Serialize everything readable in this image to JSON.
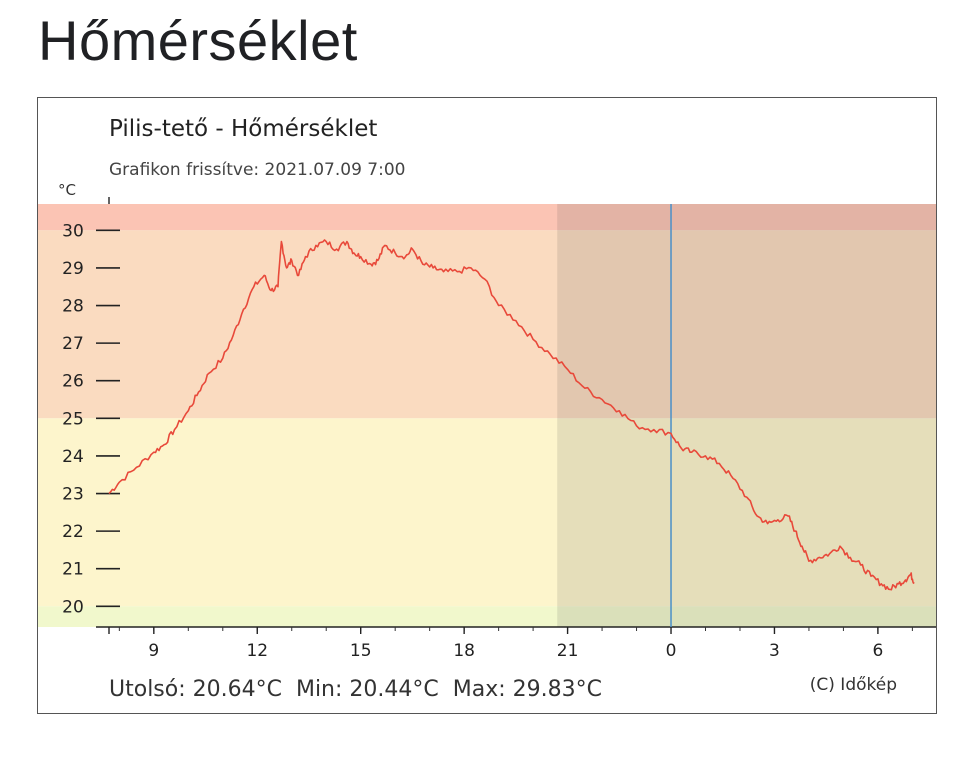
{
  "page": {
    "title": "Hőmérséklet"
  },
  "chart_data": {
    "type": "line",
    "title": "Pilis-tető - Hőmérséklet",
    "subtitle": "Grafikon frissítve: 2021.07.09 7:00",
    "y_unit": "°C",
    "ylim": [
      19.45,
      30.7
    ],
    "y_ticks": [
      20,
      21,
      22,
      23,
      24,
      25,
      26,
      27,
      28,
      29,
      30
    ],
    "x_range_hours": [
      7.7,
      31.25
    ],
    "x_ticks": [
      {
        "hour": 9,
        "label": "9"
      },
      {
        "hour": 12,
        "label": "12"
      },
      {
        "hour": 15,
        "label": "15"
      },
      {
        "hour": 18,
        "label": "18"
      },
      {
        "hour": 21,
        "label": "21"
      },
      {
        "hour": 24,
        "label": "0"
      },
      {
        "hour": 27,
        "label": "3"
      },
      {
        "hour": 30,
        "label": "6"
      }
    ],
    "bands": [
      {
        "from": 30,
        "to": 30.7,
        "color": "#fbc4b4"
      },
      {
        "from": 25,
        "to": 30,
        "color": "#fadbc0"
      },
      {
        "from": 20,
        "to": 25,
        "color": "#fdf5cc"
      },
      {
        "from": 19.45,
        "to": 20,
        "color": "#f1f8cc"
      }
    ],
    "night_shade": {
      "from_hour": 20.7,
      "to_hour": 31.25,
      "color": "rgba(60,60,60,0.12)"
    },
    "now_marker_hour": 24,
    "series": [
      {
        "color": "#e8493a",
        "points": [
          [
            7.7,
            23.0
          ],
          [
            8.0,
            23.3
          ],
          [
            8.5,
            23.7
          ],
          [
            9.0,
            24.1
          ],
          [
            9.3,
            24.3
          ],
          [
            9.6,
            24.7
          ],
          [
            10.0,
            25.2
          ],
          [
            10.3,
            25.7
          ],
          [
            10.6,
            26.2
          ],
          [
            11.0,
            26.6
          ],
          [
            11.3,
            27.2
          ],
          [
            11.6,
            27.9
          ],
          [
            11.9,
            28.5
          ],
          [
            12.2,
            28.8
          ],
          [
            12.4,
            28.4
          ],
          [
            12.6,
            28.5
          ],
          [
            12.7,
            29.7
          ],
          [
            12.85,
            29.0
          ],
          [
            13.0,
            29.2
          ],
          [
            13.2,
            28.8
          ],
          [
            13.4,
            29.3
          ],
          [
            13.7,
            29.6
          ],
          [
            14.0,
            29.7
          ],
          [
            14.3,
            29.5
          ],
          [
            14.6,
            29.7
          ],
          [
            14.8,
            29.4
          ],
          [
            15.0,
            29.3
          ],
          [
            15.3,
            29.1
          ],
          [
            15.5,
            29.2
          ],
          [
            15.7,
            29.6
          ],
          [
            16.0,
            29.4
          ],
          [
            16.3,
            29.3
          ],
          [
            16.5,
            29.5
          ],
          [
            16.8,
            29.1
          ],
          [
            17.1,
            29.0
          ],
          [
            17.4,
            28.9
          ],
          [
            17.8,
            28.9
          ],
          [
            18.2,
            29.0
          ],
          [
            18.6,
            28.7
          ],
          [
            19.0,
            28.0
          ],
          [
            19.5,
            27.6
          ],
          [
            20.0,
            27.1
          ],
          [
            20.5,
            26.7
          ],
          [
            21.0,
            26.3
          ],
          [
            21.5,
            25.8
          ],
          [
            22.0,
            25.5
          ],
          [
            22.5,
            25.2
          ],
          [
            23.0,
            24.8
          ],
          [
            23.5,
            24.7
          ],
          [
            24.0,
            24.6
          ],
          [
            24.3,
            24.2
          ],
          [
            24.6,
            24.1
          ],
          [
            25.0,
            24.0
          ],
          [
            25.4,
            23.8
          ],
          [
            25.8,
            23.4
          ],
          [
            26.2,
            22.9
          ],
          [
            26.5,
            22.4
          ],
          [
            26.8,
            22.2
          ],
          [
            27.1,
            22.3
          ],
          [
            27.4,
            22.4
          ],
          [
            27.6,
            22.0
          ],
          [
            27.8,
            21.6
          ],
          [
            28.0,
            21.2
          ],
          [
            28.3,
            21.3
          ],
          [
            28.6,
            21.4
          ],
          [
            28.9,
            21.6
          ],
          [
            29.2,
            21.3
          ],
          [
            29.5,
            21.1
          ],
          [
            29.8,
            20.8
          ],
          [
            30.1,
            20.6
          ],
          [
            30.35,
            20.45
          ],
          [
            30.6,
            20.6
          ],
          [
            30.8,
            20.7
          ],
          [
            30.95,
            20.85
          ],
          [
            31.05,
            20.64
          ]
        ]
      }
    ],
    "stats": "Utolsó: 20.64°C  Min: 20.44°C  Max: 29.83°C",
    "credit": "(C) Időkép"
  }
}
